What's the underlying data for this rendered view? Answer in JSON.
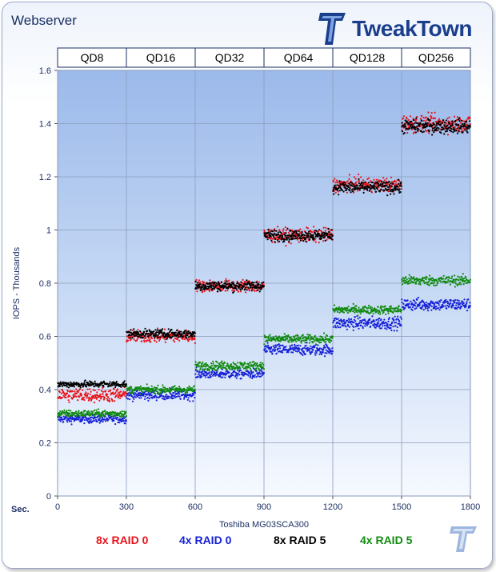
{
  "page": {
    "title": "Webserver",
    "brand": "TweakTown",
    "time_unit_label": "Sec."
  },
  "colors": {
    "navy": "#1b2f63",
    "red": "#e8141b",
    "blue": "#1620d6",
    "black": "#000000",
    "green": "#118a11"
  },
  "chart_data": {
    "type": "scatter",
    "xlabel": "Toshiba MG03SCA300",
    "ylabel": "IOPS - Thousands",
    "xlim": [
      0,
      1800
    ],
    "ylim": [
      0,
      1.6
    ],
    "x_ticks": [
      0,
      300,
      600,
      900,
      1200,
      1500,
      1800
    ],
    "y_ticks": [
      0,
      0.2,
      0.4,
      0.6,
      0.8,
      1,
      1.2,
      1.4,
      1.6
    ],
    "y_tick_labels": [
      "0",
      "0.2",
      "0.4",
      "0.6",
      "0.8",
      "1",
      "1.2",
      "1.4",
      "1.6"
    ],
    "grid": true,
    "legend_position": "bottom",
    "phases": [
      {
        "label": "QD8",
        "x_start": 0,
        "x_end": 300
      },
      {
        "label": "QD16",
        "x_start": 300,
        "x_end": 600
      },
      {
        "label": "QD32",
        "x_start": 600,
        "x_end": 900
      },
      {
        "label": "QD64",
        "x_start": 900,
        "x_end": 1200
      },
      {
        "label": "QD128",
        "x_start": 1200,
        "x_end": 1500
      },
      {
        "label": "QD256",
        "x_start": 1500,
        "x_end": 1800
      }
    ],
    "series": [
      {
        "name": "8x RAID 0",
        "color": "#e8141b",
        "phase_means": [
          0.38,
          0.6,
          0.79,
          0.98,
          1.17,
          1.4
        ],
        "spread": [
          0.025,
          0.022,
          0.022,
          0.025,
          0.025,
          0.03
        ]
      },
      {
        "name": "4x RAID 0",
        "color": "#1620d6",
        "phase_means": [
          0.29,
          0.38,
          0.46,
          0.55,
          0.65,
          0.72
        ],
        "spread": [
          0.015,
          0.018,
          0.018,
          0.02,
          0.022,
          0.022
        ]
      },
      {
        "name": "8x RAID 5",
        "color": "#000000",
        "phase_means": [
          0.42,
          0.61,
          0.79,
          0.98,
          1.16,
          1.39
        ],
        "spread": [
          0.012,
          0.015,
          0.018,
          0.02,
          0.022,
          0.025
        ]
      },
      {
        "name": "4x RAID 5",
        "color": "#118a11",
        "phase_means": [
          0.31,
          0.4,
          0.49,
          0.59,
          0.7,
          0.81
        ],
        "spread": [
          0.012,
          0.013,
          0.015,
          0.015,
          0.015,
          0.018
        ]
      }
    ]
  }
}
